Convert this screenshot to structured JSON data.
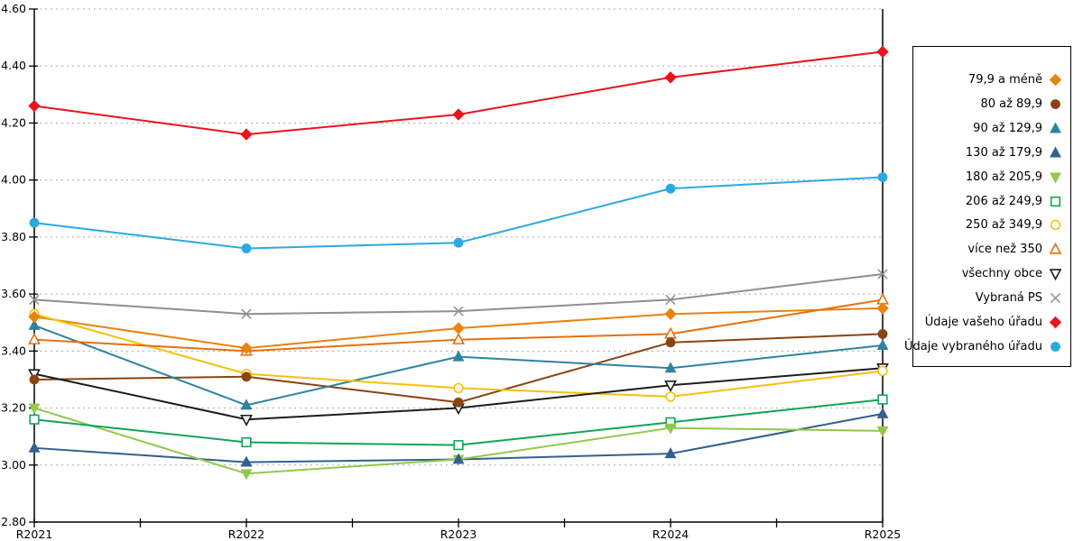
{
  "chart_data": {
    "type": "line",
    "x": [
      "R2021",
      "R2022",
      "R2023",
      "R2024",
      "R2025"
    ],
    "y_axis": {
      "min": 2.8,
      "max": 4.6,
      "step": 0.2,
      "decimals": 2,
      "tick_labels": [
        "2.80",
        "3.00",
        "3.20",
        "3.40",
        "3.60",
        "3.80",
        "4.00",
        "4.20",
        "4.40",
        "4.60"
      ]
    },
    "grid": "horizontal-dotted",
    "legend_position": "right",
    "axis_color": "#000000",
    "grid_color": "#aaaaaa",
    "series": [
      {
        "name": "79,9 a méně",
        "marker": "diamond",
        "fill": "solid",
        "color": "#E8830D",
        "values": [
          3.52,
          3.41,
          3.48,
          3.53,
          3.55
        ]
      },
      {
        "name": "80 až 89,9",
        "marker": "circle",
        "fill": "solid",
        "color": "#8A4413",
        "values": [
          3.3,
          3.31,
          3.22,
          3.43,
          3.46
        ]
      },
      {
        "name": "90 až 129,9",
        "marker": "triangle-up",
        "fill": "solid",
        "color": "#2E849E",
        "values": [
          3.49,
          3.21,
          3.38,
          3.34,
          3.42
        ]
      },
      {
        "name": "130 až 179,9",
        "marker": "triangle-up",
        "fill": "solid",
        "color": "#33608C",
        "values": [
          3.06,
          3.01,
          3.02,
          3.04,
          3.18
        ]
      },
      {
        "name": "180 až 205,9",
        "marker": "triangle-down",
        "fill": "solid",
        "color": "#92C84C",
        "values": [
          3.2,
          2.97,
          3.02,
          3.13,
          3.12
        ]
      },
      {
        "name": "206 až 249,9",
        "marker": "square",
        "fill": "open",
        "color": "#14A357",
        "values": [
          3.16,
          3.08,
          3.07,
          3.15,
          3.23
        ]
      },
      {
        "name": "250 až 349,9",
        "marker": "circle",
        "fill": "open",
        "color": "#F4C10F",
        "values": [
          3.53,
          3.32,
          3.27,
          3.24,
          3.33
        ]
      },
      {
        "name": "více než 350",
        "marker": "triangle-up",
        "fill": "open",
        "color": "#E86F0E",
        "values": [
          3.44,
          3.4,
          3.44,
          3.46,
          3.58
        ]
      },
      {
        "name": "všechny obce",
        "marker": "triangle-down",
        "fill": "open",
        "color": "#1C1C1C",
        "values": [
          3.32,
          3.16,
          3.2,
          3.28,
          3.34
        ]
      },
      {
        "name": "Vybraná PS",
        "marker": "x",
        "fill": "open",
        "color": "#8F8F8F",
        "values": [
          3.58,
          3.53,
          3.54,
          3.58,
          3.67
        ]
      },
      {
        "name": "Údaje vašeho úřadu",
        "marker": "diamond",
        "fill": "solid",
        "color": "#EA141E",
        "values": [
          4.26,
          4.16,
          4.23,
          4.36,
          4.45
        ]
      },
      {
        "name": "Údaje vybraného úřadu",
        "marker": "circle",
        "fill": "solid",
        "color": "#2BA9E1",
        "values": [
          3.85,
          3.76,
          3.78,
          3.97,
          4.01
        ]
      }
    ]
  }
}
